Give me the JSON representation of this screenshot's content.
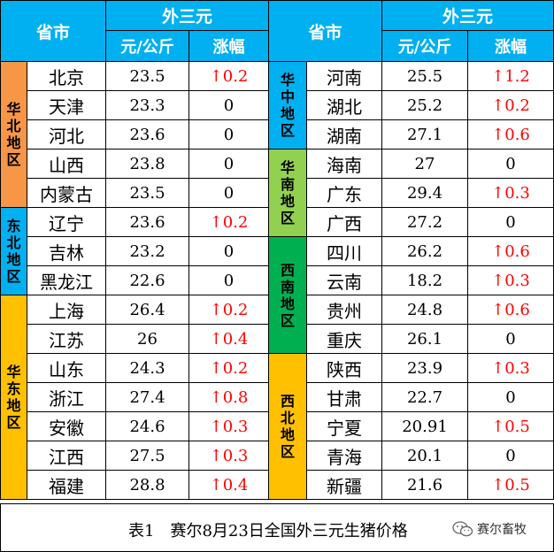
{
  "header": {
    "province_label": "省市",
    "price_group_label": "外三元",
    "unit_label": "元/公斤",
    "change_label": "涨幅"
  },
  "colors": {
    "header_bg": "#00b0f0",
    "north": "#f79646",
    "northeast": "#00b0f0",
    "east": "#ffc000",
    "central": "#00b0f0",
    "south": "#92d050",
    "southwest": "#00b050",
    "northwest": "#ffc000",
    "up_text": "#ff0000"
  },
  "left_groups": [
    {
      "region": "华北地区",
      "color_key": "north",
      "rows": [
        {
          "province": "北京",
          "price": "23.5",
          "change": "↑0.2",
          "up": true
        },
        {
          "province": "天津",
          "price": "23.3",
          "change": "0",
          "up": false
        },
        {
          "province": "河北",
          "price": "23.6",
          "change": "0",
          "up": false
        },
        {
          "province": "山西",
          "price": "23.8",
          "change": "0",
          "up": false
        },
        {
          "province": "内蒙古",
          "price": "23.5",
          "change": "0",
          "up": false
        }
      ]
    },
    {
      "region": "东北地区",
      "color_key": "northeast",
      "rows": [
        {
          "province": "辽宁",
          "price": "23.6",
          "change": "↑0.2",
          "up": true
        },
        {
          "province": "吉林",
          "price": "23.2",
          "change": "0",
          "up": false
        },
        {
          "province": "黑龙江",
          "price": "22.6",
          "change": "0",
          "up": false
        }
      ]
    },
    {
      "region": "华东地区",
      "color_key": "east",
      "rows": [
        {
          "province": "上海",
          "price": "26.4",
          "change": "↑0.2",
          "up": true
        },
        {
          "province": "江苏",
          "price": "26",
          "change": "↑0.4",
          "up": true
        },
        {
          "province": "山东",
          "price": "24.3",
          "change": "↑0.2",
          "up": true
        },
        {
          "province": "浙江",
          "price": "27.4",
          "change": "↑0.8",
          "up": true
        },
        {
          "province": "安徽",
          "price": "24.6",
          "change": "↑0.3",
          "up": true
        },
        {
          "province": "江西",
          "price": "27.5",
          "change": "↑0.3",
          "up": true
        },
        {
          "province": "福建",
          "price": "28.8",
          "change": "↑0.4",
          "up": true
        }
      ]
    }
  ],
  "right_groups": [
    {
      "region": "华中地区",
      "color_key": "central",
      "rows": [
        {
          "province": "河南",
          "price": "25.5",
          "change": "↑1.2",
          "up": true
        },
        {
          "province": "湖北",
          "price": "25.2",
          "change": "↑0.2",
          "up": true
        },
        {
          "province": "湖南",
          "price": "27.1",
          "change": "↑0.6",
          "up": true
        }
      ]
    },
    {
      "region": "华南地区",
      "color_key": "south",
      "rows": [
        {
          "province": "海南",
          "price": "27",
          "change": "0",
          "up": false
        },
        {
          "province": "广东",
          "price": "29.4",
          "change": "↑0.3",
          "up": true
        },
        {
          "province": "广西",
          "price": "27.2",
          "change": "0",
          "up": false
        }
      ]
    },
    {
      "region": "西南地区",
      "color_key": "southwest",
      "rows": [
        {
          "province": "四川",
          "price": "26.2",
          "change": "↑0.6",
          "up": true
        },
        {
          "province": "云南",
          "price": "18.2",
          "change": "↑0.3",
          "up": true
        },
        {
          "province": "贵州",
          "price": "24.8",
          "change": "↑0.6",
          "up": true
        },
        {
          "province": "重庆",
          "price": "26.1",
          "change": "0",
          "up": false
        }
      ]
    },
    {
      "region": "西北地区",
      "color_key": "northwest",
      "rows": [
        {
          "province": "陕西",
          "price": "23.9",
          "change": "↑0.3",
          "up": true
        },
        {
          "province": "甘肃",
          "price": "22.7",
          "change": "0",
          "up": false
        },
        {
          "province": "宁夏",
          "price": "20.91",
          "change": "↑0.5",
          "up": true
        },
        {
          "province": "青海",
          "price": "20.1",
          "change": "0",
          "up": false
        },
        {
          "province": "新疆",
          "price": "21.6",
          "change": "↑0.5",
          "up": true
        }
      ]
    }
  ],
  "caption": "表1　赛尔8月23日全国外三元生猪价格",
  "brand": {
    "name": "赛尔畜牧",
    "icon": "wechat-icon"
  }
}
